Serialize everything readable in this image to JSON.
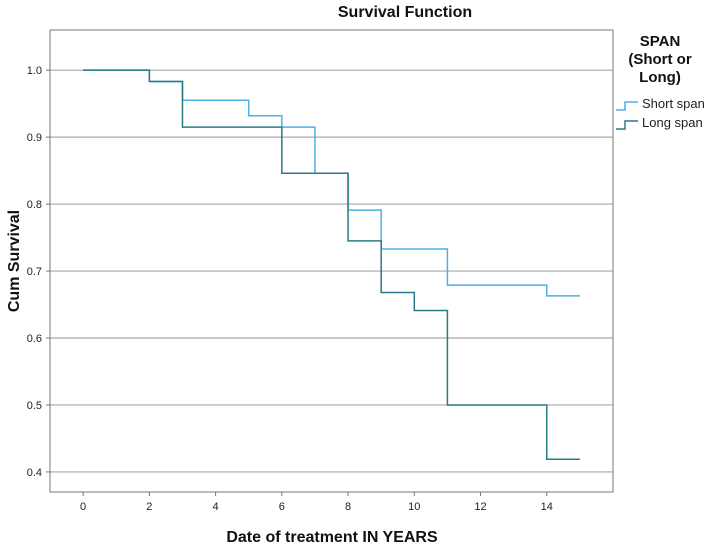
{
  "chart_data": {
    "type": "line",
    "subtype": "kaplan-meier step",
    "title": "Survival Function",
    "xlabel": "Date of treatment IN YEARS",
    "ylabel": "Cum Survival",
    "xlim": [
      -1,
      16
    ],
    "ylim": [
      0.37,
      1.06
    ],
    "x_ticks": [
      0,
      2,
      4,
      6,
      8,
      10,
      12,
      14
    ],
    "y_ticks": [
      0.4,
      0.5,
      0.6,
      0.7,
      0.8,
      0.9,
      1.0
    ],
    "y_tick_labels": [
      "0.4",
      "0.5",
      "0.6",
      "0.7",
      "0.8",
      "0.9",
      "1.0"
    ],
    "grid": true,
    "legend": {
      "title_lines": [
        "SPAN",
        "(Short or",
        "Long)"
      ],
      "position": "right"
    },
    "series": [
      {
        "name": "Short span",
        "color": "#4cb1e6",
        "steps": [
          {
            "x": 0,
            "y": 1.0
          },
          {
            "x": 2,
            "y": 0.983
          },
          {
            "x": 3,
            "y": 0.955
          },
          {
            "x": 5,
            "y": 0.932
          },
          {
            "x": 6,
            "y": 0.915
          },
          {
            "x": 7,
            "y": 0.846
          },
          {
            "x": 8,
            "y": 0.791
          },
          {
            "x": 9,
            "y": 0.733
          },
          {
            "x": 11,
            "y": 0.679
          },
          {
            "x": 14,
            "y": 0.663
          }
        ],
        "end_x": 15
      },
      {
        "name": "Long span",
        "color": "#2a7a85",
        "steps": [
          {
            "x": 0,
            "y": 1.0
          },
          {
            "x": 2,
            "y": 0.983
          },
          {
            "x": 3,
            "y": 0.915
          },
          {
            "x": 6,
            "y": 0.846
          },
          {
            "x": 8,
            "y": 0.745
          },
          {
            "x": 9,
            "y": 0.668
          },
          {
            "x": 10,
            "y": 0.641
          },
          {
            "x": 11,
            "y": 0.5
          },
          {
            "x": 14,
            "y": 0.419
          }
        ],
        "end_x": 15
      }
    ]
  }
}
